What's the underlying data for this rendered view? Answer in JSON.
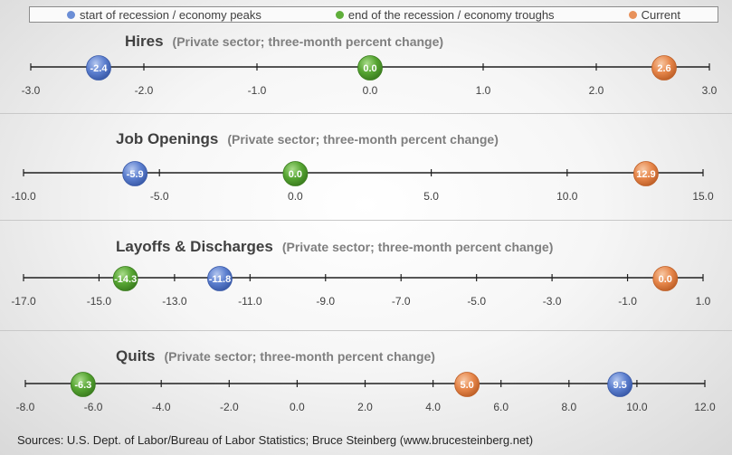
{
  "legend": {
    "peak_label": "start of recession / economy peaks",
    "trough_label": "end of the recession / economy troughs",
    "current_label": "Current"
  },
  "colors": {
    "peak": "#4f73c6",
    "trough": "#4c9a2a",
    "current": "#e07b39",
    "axis": "#1f1f1f",
    "tick_text": "#404040"
  },
  "chart_data": [
    {
      "type": "scatter",
      "title": "Hires",
      "subtitle": "(Private sector; three-month percent change)",
      "xlim": [
        -3,
        3
      ],
      "ticks": [
        "-3.0",
        "-2.0",
        "-1.0",
        "0.0",
        "1.0",
        "2.0",
        "3.0"
      ],
      "tick_values": [
        -3,
        -2,
        -1,
        0,
        1,
        2,
        3
      ],
      "points": [
        {
          "series": "peak",
          "x": -2.4,
          "label": "-2.4"
        },
        {
          "series": "trough",
          "x": 0.0,
          "label": "0.0"
        },
        {
          "series": "current",
          "x": 2.6,
          "label": "2.6"
        }
      ]
    },
    {
      "type": "scatter",
      "title": "Job Openings",
      "subtitle": "(Private sector; three-month percent change)",
      "xlim": [
        -10,
        15
      ],
      "ticks": [
        "-10.0",
        "-5.0",
        "0.0",
        "5.0",
        "10.0",
        "15.0"
      ],
      "tick_values": [
        -10,
        -5,
        0,
        5,
        10,
        15
      ],
      "points": [
        {
          "series": "peak",
          "x": -5.9,
          "label": "-5.9"
        },
        {
          "series": "trough",
          "x": 0.0,
          "label": "0.0"
        },
        {
          "series": "current",
          "x": 12.9,
          "label": "12.9"
        }
      ]
    },
    {
      "type": "scatter",
      "title": "Layoffs & Discharges",
      "subtitle": "(Private sector; three-month percent change)",
      "xlim": [
        -17,
        1
      ],
      "ticks": [
        "-17.0",
        "-15.0",
        "-13.0",
        "-11.0",
        "-9.0",
        "-7.0",
        "-5.0",
        "-3.0",
        "-1.0",
        "1.0"
      ],
      "tick_values": [
        -17,
        -15,
        -13,
        -11,
        -9,
        -7,
        -5,
        -3,
        -1,
        1
      ],
      "points": [
        {
          "series": "trough",
          "x": -14.3,
          "label": "-14.3"
        },
        {
          "series": "peak",
          "x": -11.8,
          "label": "-11.8"
        },
        {
          "series": "current",
          "x": 0.0,
          "label": "0.0"
        }
      ]
    },
    {
      "type": "scatter",
      "title": "Quits",
      "subtitle": "(Private sector; three-month percent change)",
      "xlim": [
        -8,
        12
      ],
      "ticks": [
        "-8.0",
        "-6.0",
        "-4.0",
        "-2.0",
        "0.0",
        "2.0",
        "4.0",
        "6.0",
        "8.0",
        "10.0",
        "12.0"
      ],
      "tick_values": [
        -8,
        -6,
        -4,
        -2,
        0,
        2,
        4,
        6,
        8,
        10,
        12
      ],
      "points": [
        {
          "series": "trough",
          "x": -6.3,
          "label": "-6.3"
        },
        {
          "series": "current",
          "x": 5.0,
          "label": "5.0"
        },
        {
          "series": "peak",
          "x": 9.5,
          "label": "9.5"
        }
      ]
    }
  ],
  "source": "Sources: U.S. Dept. of Labor/Bureau of Labor Statistics; Bruce Steinberg (www.brucesteinberg.net)"
}
